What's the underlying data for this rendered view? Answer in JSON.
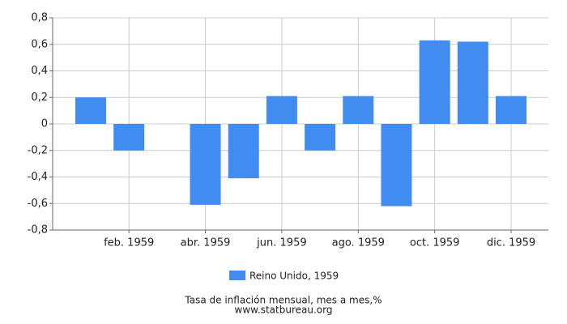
{
  "chart_data": {
    "type": "bar",
    "categories": [
      null,
      "feb. 1959",
      null,
      "abr. 1959",
      null,
      "jun. 1959",
      null,
      "ago. 1959",
      null,
      "oct. 1959",
      null,
      "dic. 1959"
    ],
    "series": [
      {
        "name": "Reino Unido, 1959",
        "color": "#418cf0",
        "values": [
          0.2,
          -0.2,
          0,
          -0.61,
          -0.41,
          0.21,
          -0.2,
          0.21,
          -0.62,
          0.63,
          0.62,
          0.21
        ]
      }
    ],
    "ylim": [
      -0.8,
      0.8
    ],
    "yticks": [
      {
        "value": -0.8,
        "label": "-0,8"
      },
      {
        "value": -0.6,
        "label": "-0,6"
      },
      {
        "value": -0.4,
        "label": "-0,4"
      },
      {
        "value": -0.2,
        "label": "-0,2"
      },
      0,
      {
        "value": 0.2,
        "label": "0,2"
      },
      {
        "value": 0.4,
        "label": "0,4"
      },
      {
        "value": 0.6,
        "label": "0,6"
      },
      {
        "value": 0.8,
        "label": "0,8"
      }
    ],
    "grid": true,
    "x_axis_title": "Tasa de inflación mensual, mes a mes,%",
    "source": "www.statbureau.org"
  }
}
